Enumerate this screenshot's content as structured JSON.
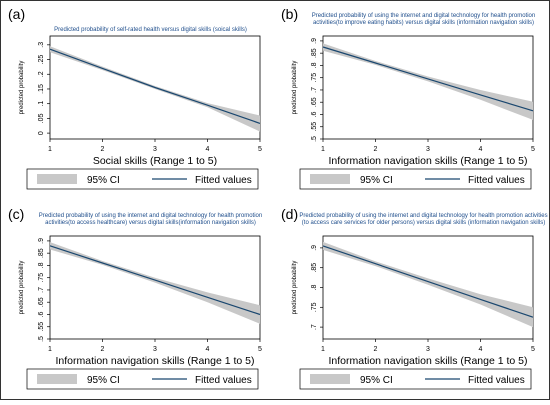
{
  "chart_data": [
    {
      "type": "line",
      "panel_label": "(a)",
      "title_lines": [
        "Predicted probability of self-rated health versus digital skills (soical skills)"
      ],
      "xlabel": "Social skills (Range 1 to 5)",
      "ylabel": "predicted probability",
      "xlim": [
        1,
        5
      ],
      "xticks": [
        1,
        2,
        3,
        4,
        5
      ],
      "ylim": [
        -0.02,
        0.33
      ],
      "yticks": [
        0,
        0.05,
        0.1,
        0.15,
        0.2,
        0.25,
        0.3
      ],
      "yticklabels": [
        "0",
        ".05",
        ".1",
        ".15",
        ".2",
        ".25",
        ".3"
      ],
      "x": [
        1,
        2,
        3,
        4,
        5
      ],
      "fitted": [
        0.285,
        0.22,
        0.155,
        0.095,
        0.033
      ],
      "ci_upper": [
        0.295,
        0.226,
        0.16,
        0.102,
        0.06
      ],
      "ci_lower": [
        0.275,
        0.214,
        0.15,
        0.088,
        0.005
      ],
      "legend": [
        "95% CI",
        "Fitted values"
      ]
    },
    {
      "type": "line",
      "panel_label": "(b)",
      "title_lines": [
        "Predicted probability of using the internet and digital technology for health promotion",
        "activities(to improve eating habits) versus digital skills (information navigation skills)"
      ],
      "xlabel": "Information navigation skills (Range 1 to 5)",
      "ylabel": "predicted probability",
      "xlim": [
        1,
        5
      ],
      "xticks": [
        1,
        2,
        3,
        4,
        5
      ],
      "ylim": [
        0.5,
        0.92
      ],
      "yticks": [
        0.5,
        0.55,
        0.6,
        0.65,
        0.7,
        0.75,
        0.8,
        0.85,
        0.9
      ],
      "yticklabels": [
        ".5",
        ".55",
        ".6",
        ".65",
        ".7",
        ".75",
        ".8",
        ".85",
        ".9"
      ],
      "x": [
        1,
        2,
        3,
        4,
        5
      ],
      "fitted": [
        0.875,
        0.81,
        0.745,
        0.68,
        0.615
      ],
      "ci_upper": [
        0.89,
        0.818,
        0.755,
        0.7,
        0.652
      ],
      "ci_lower": [
        0.86,
        0.802,
        0.735,
        0.66,
        0.578
      ],
      "legend": [
        "95% CI",
        "Fitted values"
      ]
    },
    {
      "type": "line",
      "panel_label": "(c)",
      "title_lines": [
        "Predicted probability of using the internet and digital technology for health promotion",
        "activities(to access healthcare) versus digital skills(information navigation skills)"
      ],
      "xlabel": "Information navigation skills (Range 1 to 5)",
      "ylabel": "predicted probability",
      "xlim": [
        1,
        5
      ],
      "xticks": [
        1,
        2,
        3,
        4,
        5
      ],
      "ylim": [
        0.5,
        0.92
      ],
      "yticks": [
        0.5,
        0.55,
        0.6,
        0.65,
        0.7,
        0.75,
        0.8,
        0.85,
        0.9
      ],
      "yticklabels": [
        ".5",
        ".55",
        ".6",
        ".65",
        ".7",
        ".75",
        ".8",
        ".85",
        ".9"
      ],
      "x": [
        1,
        2,
        3,
        4,
        5
      ],
      "fitted": [
        0.88,
        0.81,
        0.74,
        0.67,
        0.6
      ],
      "ci_upper": [
        0.895,
        0.818,
        0.75,
        0.69,
        0.638
      ],
      "ci_lower": [
        0.865,
        0.802,
        0.73,
        0.65,
        0.562
      ],
      "legend": [
        "95% CI",
        "Fitted values"
      ]
    },
    {
      "type": "line",
      "panel_label": "(d)",
      "title_lines": [
        "Predicted probability of using the internet and digital technology for health promotion activities",
        "(to access care services for older persons) versus digital skills (information navigation skills)"
      ],
      "xlabel": "Information navigation skills (Range 1 to 5)",
      "ylabel": "predicted probability",
      "xlim": [
        1,
        5
      ],
      "xticks": [
        1,
        2,
        3,
        4,
        5
      ],
      "ylim": [
        0.67,
        0.93
      ],
      "yticks": [
        0.7,
        0.75,
        0.8,
        0.85,
        0.9
      ],
      "yticklabels": [
        ".7",
        ".75",
        ".8",
        ".85",
        ".9"
      ],
      "x": [
        1,
        2,
        3,
        4,
        5
      ],
      "fitted": [
        0.905,
        0.86,
        0.815,
        0.77,
        0.725
      ],
      "ci_upper": [
        0.915,
        0.866,
        0.823,
        0.783,
        0.75
      ],
      "ci_lower": [
        0.895,
        0.854,
        0.807,
        0.757,
        0.7
      ],
      "legend": [
        "95% CI",
        "Fitted values"
      ]
    }
  ],
  "colors": {
    "ci_band": "#c8c8c8",
    "fitted_line": "#1a476f",
    "title_text": "#1f4e8c",
    "frame": "#000000"
  }
}
